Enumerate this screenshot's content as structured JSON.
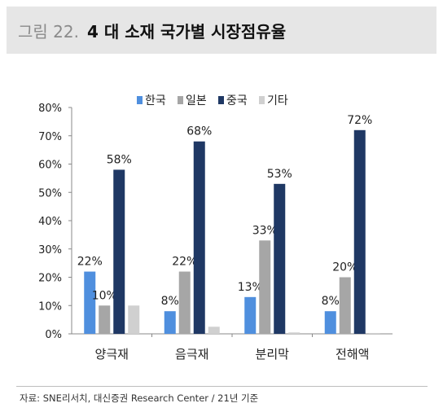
{
  "header": {
    "figure_label": "그림 22.",
    "title": "4 대 소재 국가별 시장점유율"
  },
  "chart_data": {
    "type": "bar",
    "categories": [
      "양극재",
      "음극재",
      "분리막",
      "전해액"
    ],
    "series": [
      {
        "name": "한국",
        "values": [
          22,
          8,
          13,
          8
        ],
        "labels": [
          "22%",
          "8%",
          "13%",
          "8%"
        ],
        "color": "#4f8fde"
      },
      {
        "name": "일본",
        "values": [
          10,
          22,
          33,
          20
        ],
        "labels": [
          "10%",
          "22%",
          "33%",
          "20%"
        ],
        "color": "#a6a6a6"
      },
      {
        "name": "중국",
        "values": [
          58,
          68,
          53,
          72
        ],
        "labels": [
          "58%",
          "68%",
          "53%",
          "72%"
        ],
        "color": "#1f3864"
      },
      {
        "name": "기타",
        "values": [
          10,
          2.5,
          0.5,
          0.3
        ],
        "labels": [
          "",
          "",
          "",
          ""
        ],
        "color": "#d0d0d0"
      }
    ],
    "yticks": [
      "0%",
      "10%",
      "20%",
      "30%",
      "40%",
      "50%",
      "60%",
      "70%",
      "80%"
    ],
    "ylim": [
      0,
      80
    ],
    "legend_position": "top",
    "grid": false
  },
  "source": "자료: SNE리서치, 대신증권 Research Center / 21년 기준"
}
